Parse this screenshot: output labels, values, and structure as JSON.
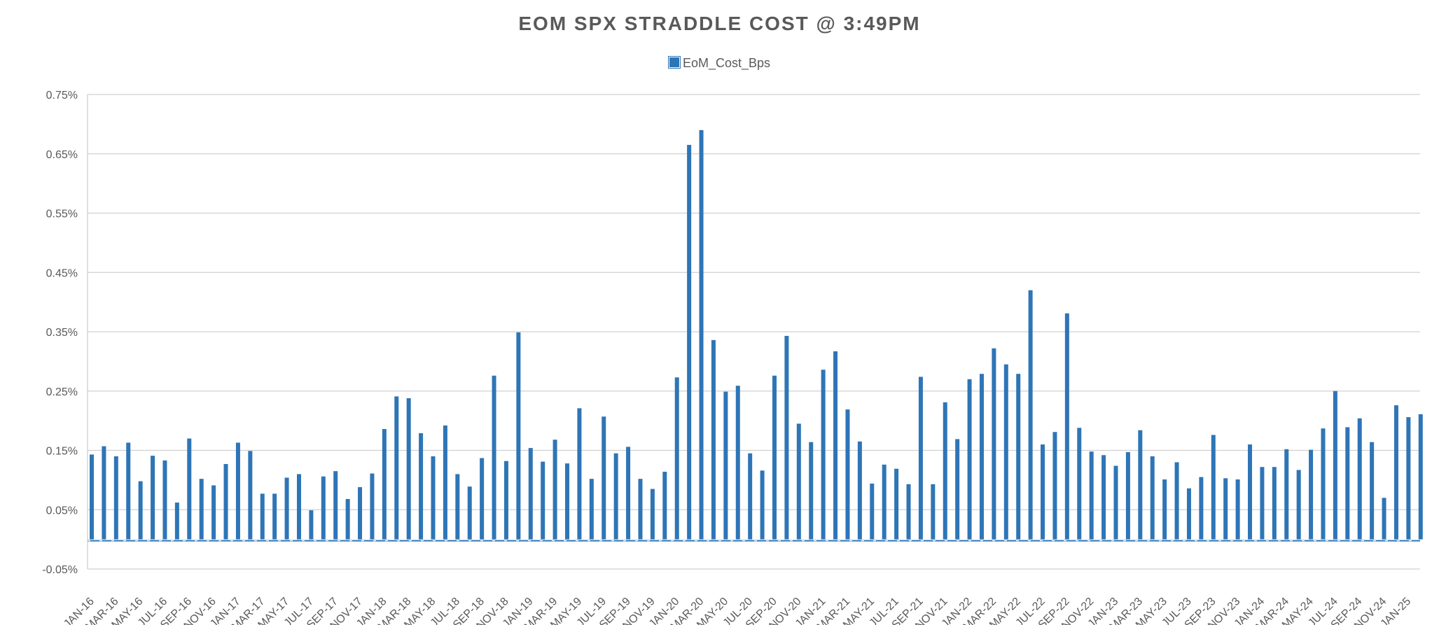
{
  "chart_data": {
    "type": "bar",
    "title": "EOM SPX STRADDLE COST @ 3:49PM",
    "legend": [
      "EoM_Cost_Bps"
    ],
    "legend_position": "top-center",
    "xlabel": "",
    "ylabel": "",
    "ylim": [
      -0.05,
      0.75
    ],
    "yticks": [
      "-0.05%",
      "0.05%",
      "0.15%",
      "0.25%",
      "0.35%",
      "0.45%",
      "0.55%",
      "0.65%",
      "0.75%"
    ],
    "ytick_values": [
      -0.05,
      0.05,
      0.15,
      0.25,
      0.35,
      0.45,
      0.55,
      0.65,
      0.75
    ],
    "x_tick_labels": [
      "JAN-16",
      "MAR-16",
      "MAY-16",
      "JUL-16",
      "SEP-16",
      "NOV-16",
      "JAN-17",
      "MAR-17",
      "MAY-17",
      "JUL-17",
      "SEP-17",
      "NOV-17",
      "JAN-18",
      "MAR-18",
      "MAY-18",
      "JUL-18",
      "SEP-18",
      "NOV-18",
      "JAN-19",
      "MAR-19",
      "MAY-19",
      "JUL-19",
      "SEP-19",
      "NOV-19",
      "JAN-20",
      "MAR-20",
      "MAY-20",
      "JUL-20",
      "SEP-20",
      "NOV-20",
      "JAN-21",
      "MAR-21",
      "MAY-21",
      "JUL-21",
      "SEP-21",
      "NOV-21",
      "JAN-22",
      "MAR-22",
      "MAY-22",
      "JUL-22",
      "SEP-22",
      "NOV-22",
      "JAN-23",
      "MAR-23",
      "MAY-23",
      "JUL-23",
      "SEP-23",
      "NOV-23",
      "JAN-24",
      "MAR-24",
      "MAY-24",
      "JUL-24",
      "SEP-24",
      "NOV-24",
      "JAN-25"
    ],
    "grid": true,
    "series": [
      {
        "name": "EoM_Cost_Bps",
        "color": "#2E75B6",
        "values": [
          0.143,
          0.157,
          0.14,
          0.163,
          0.098,
          0.141,
          0.133,
          0.062,
          0.17,
          0.102,
          0.091,
          0.127,
          0.163,
          0.149,
          0.077,
          0.077,
          0.104,
          0.11,
          0.049,
          0.106,
          0.115,
          0.068,
          0.088,
          0.111,
          0.186,
          0.241,
          0.238,
          0.179,
          0.14,
          0.192,
          0.11,
          0.089,
          0.137,
          0.276,
          0.132,
          0.349,
          0.154,
          0.131,
          0.168,
          0.128,
          0.221,
          0.102,
          0.207,
          0.145,
          0.156,
          0.102,
          0.085,
          0.114,
          0.273,
          0.665,
          0.69,
          0.336,
          0.249,
          0.259,
          0.145,
          0.116,
          0.276,
          0.343,
          0.195,
          0.164,
          0.286,
          0.317,
          0.219,
          0.165,
          0.094,
          0.126,
          0.119,
          0.093,
          0.274,
          0.093,
          0.231,
          0.169,
          0.27,
          0.279,
          0.322,
          0.295,
          0.279,
          0.42,
          0.16,
          0.181,
          0.381,
          0.188,
          0.148,
          0.142,
          0.124,
          0.147,
          0.184,
          0.14,
          0.101,
          0.13,
          0.086,
          0.105,
          0.176,
          0.103,
          0.101,
          0.16,
          0.122,
          0.122,
          0.152,
          0.117,
          0.151,
          0.187,
          0.25,
          0.189,
          0.204,
          0.164,
          0.07,
          0.226,
          0.206,
          0.211
        ]
      }
    ]
  }
}
